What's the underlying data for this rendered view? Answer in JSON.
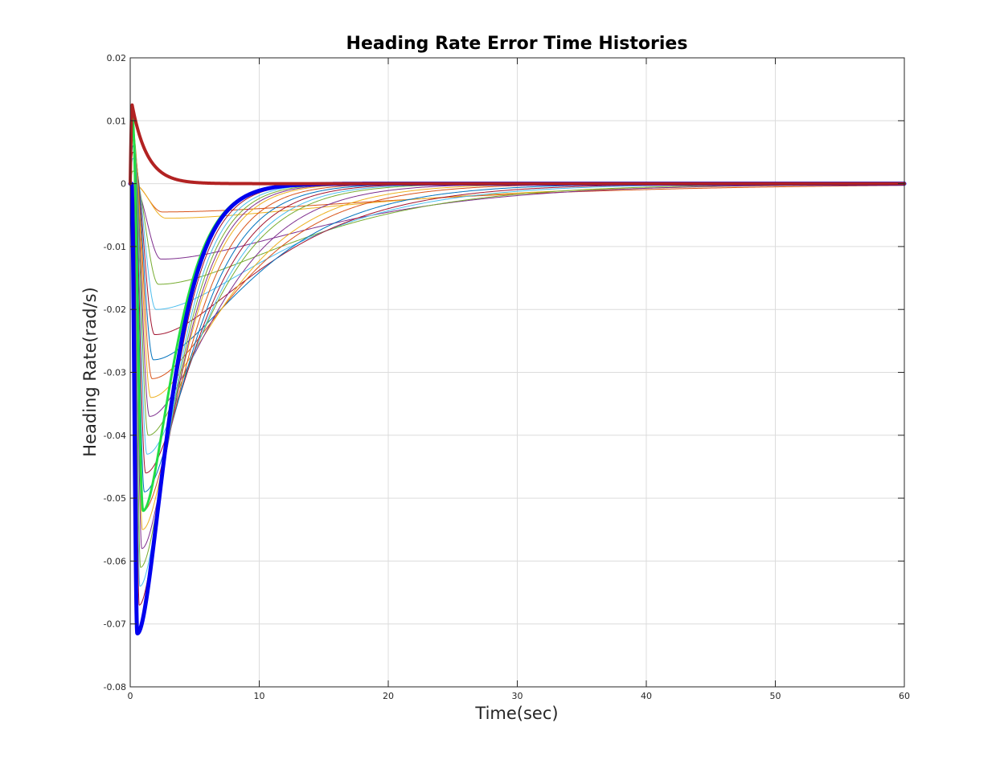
{
  "chart_data": {
    "type": "line",
    "title": "Heading Rate Error Time Histories",
    "xlabel": "Time(sec)",
    "ylabel": "Heading Rate(rad/s)",
    "xlim": [
      0,
      60
    ],
    "ylim": [
      -0.08,
      0.02
    ],
    "xticks": [
      0,
      10,
      20,
      30,
      40,
      50,
      60
    ],
    "xtick_labels": [
      "0",
      "10",
      "20",
      "30",
      "40",
      "50",
      "60"
    ],
    "yticks": [
      -0.08,
      -0.07,
      -0.06,
      -0.05,
      -0.04,
      -0.03,
      -0.02,
      -0.01,
      0,
      0.01,
      0.02
    ],
    "ytick_labels": [
      "-0.08",
      "-0.07",
      "-0.06",
      "-0.05",
      "-0.04",
      "-0.03",
      "-0.02",
      "-0.01",
      "0",
      "0.01",
      "0.02"
    ],
    "grid": true,
    "legend": "none",
    "sweep_colors": [
      "#0072BD",
      "#D95319",
      "#EDB120",
      "#7E2F8E",
      "#77AC30",
      "#4DBEEE",
      "#A2142F"
    ],
    "series": [
      {
        "color": "#D95319",
        "peak": 0.0,
        "peak_time": 0.2,
        "min": -0.0045,
        "min_time": 2.5,
        "settle_time": 60,
        "width": 1
      },
      {
        "color": "#EDB120",
        "peak": 0.0,
        "peak_time": 0.2,
        "min": -0.0055,
        "min_time": 2.8,
        "settle_time": 50,
        "width": 1
      },
      {
        "color": "#7E2F8E",
        "peak": 0.0,
        "peak_time": 0.2,
        "min": -0.012,
        "min_time": 2.4,
        "settle_time": 40,
        "width": 1
      },
      {
        "color": "#77AC30",
        "peak": 0.002,
        "peak_time": 0.2,
        "min": -0.016,
        "min_time": 2.2,
        "settle_time": 35,
        "width": 1
      },
      {
        "color": "#4DBEEE",
        "peak": 0.004,
        "peak_time": 0.2,
        "min": -0.02,
        "min_time": 2.0,
        "settle_time": 30,
        "width": 1
      },
      {
        "color": "#A2142F",
        "peak": 0.005,
        "peak_time": 0.2,
        "min": -0.024,
        "min_time": 1.9,
        "settle_time": 27,
        "width": 1
      },
      {
        "color": "#0072BD",
        "peak": 0.006,
        "peak_time": 0.2,
        "min": -0.028,
        "min_time": 1.8,
        "settle_time": 24,
        "width": 1
      },
      {
        "color": "#D95319",
        "peak": 0.007,
        "peak_time": 0.2,
        "min": -0.031,
        "min_time": 1.7,
        "settle_time": 21,
        "width": 1
      },
      {
        "color": "#EDB120",
        "peak": 0.008,
        "peak_time": 0.2,
        "min": -0.034,
        "min_time": 1.6,
        "settle_time": 19,
        "width": 1
      },
      {
        "color": "#7E2F8E",
        "peak": 0.008,
        "peak_time": 0.2,
        "min": -0.037,
        "min_time": 1.5,
        "settle_time": 17,
        "width": 1
      },
      {
        "color": "#77AC30",
        "peak": 0.009,
        "peak_time": 0.2,
        "min": -0.04,
        "min_time": 1.4,
        "settle_time": 15,
        "width": 1
      },
      {
        "color": "#4DBEEE",
        "peak": 0.009,
        "peak_time": 0.2,
        "min": -0.043,
        "min_time": 1.3,
        "settle_time": 14,
        "width": 1
      },
      {
        "color": "#A2142F",
        "peak": 0.009,
        "peak_time": 0.2,
        "min": -0.046,
        "min_time": 1.2,
        "settle_time": 13,
        "width": 1
      },
      {
        "color": "#0072BD",
        "peak": 0.01,
        "peak_time": 0.2,
        "min": -0.049,
        "min_time": 1.1,
        "settle_time": 12,
        "width": 1
      },
      {
        "color": "#D95319",
        "peak": 0.01,
        "peak_time": 0.2,
        "min": -0.052,
        "min_time": 1.0,
        "settle_time": 11,
        "width": 1
      },
      {
        "color": "#EDB120",
        "peak": 0.01,
        "peak_time": 0.2,
        "min": -0.055,
        "min_time": 0.95,
        "settle_time": 10,
        "width": 1
      },
      {
        "color": "#7E2F8E",
        "peak": 0.01,
        "peak_time": 0.2,
        "min": -0.058,
        "min_time": 0.9,
        "settle_time": 9.5,
        "width": 1
      },
      {
        "color": "#77AC30",
        "peak": 0.011,
        "peak_time": 0.2,
        "min": -0.061,
        "min_time": 0.8,
        "settle_time": 9,
        "width": 1
      },
      {
        "color": "#4DBEEE",
        "peak": 0.011,
        "peak_time": 0.2,
        "min": -0.064,
        "min_time": 0.75,
        "settle_time": 8.5,
        "width": 1
      },
      {
        "color": "#A2142F",
        "peak": 0.011,
        "peak_time": 0.2,
        "min": -0.067,
        "min_time": 0.7,
        "settle_time": 8,
        "width": 1
      },
      {
        "color": "#22DD44",
        "peak": 0.011,
        "peak_time": 0.15,
        "min": -0.052,
        "min_time": 1.0,
        "settle_time": 8,
        "width": 3
      },
      {
        "color": "#0000EE",
        "peak": 0.0,
        "peak_time": 0.1,
        "min": -0.0715,
        "min_time": 0.55,
        "settle_time": 7.5,
        "width": 5
      },
      {
        "color": "#B22222",
        "peak": 0.0125,
        "peak_time": 0.15,
        "min": 0.0,
        "min_time": 5.5,
        "settle_time": 6,
        "width": 4
      }
    ]
  }
}
